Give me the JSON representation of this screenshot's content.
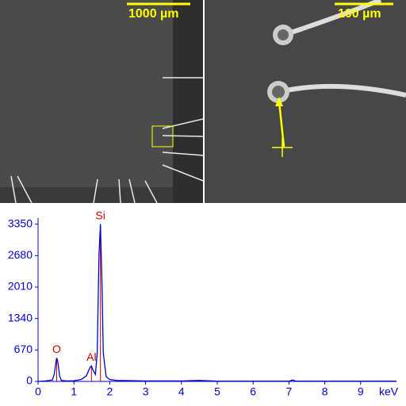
{
  "images": [
    {
      "scale_bar": "1000 µm"
    },
    {
      "scale_bar": "100 µm"
    }
  ],
  "chart_data": {
    "type": "line",
    "x_label": "keV",
    "x": [
      0,
      0.2,
      0.4,
      0.45,
      0.5,
      0.52,
      0.55,
      0.6,
      0.65,
      0.8,
      1.0,
      1.2,
      1.35,
      1.45,
      1.49,
      1.53,
      1.6,
      1.65,
      1.7,
      1.74,
      1.78,
      1.82,
      1.9,
      2.0,
      2.2,
      3,
      4,
      4.5,
      5,
      6,
      7,
      7.1,
      7.2,
      8,
      9,
      10
    ],
    "values": [
      0,
      10,
      30,
      150,
      420,
      500,
      430,
      120,
      20,
      10,
      15,
      40,
      120,
      300,
      330,
      250,
      150,
      600,
      2700,
      3350,
      2200,
      600,
      100,
      40,
      20,
      10,
      10,
      20,
      5,
      5,
      5,
      30,
      5,
      5,
      5,
      5
    ],
    "color": "#0000cc",
    "peak_labels": [
      {
        "label": "O",
        "x": 0.52
      },
      {
        "label": "Al",
        "x": 1.49
      },
      {
        "label": "Si",
        "x": 1.74
      }
    ],
    "xlim": [
      0,
      10
    ],
    "xticks": [
      0,
      1,
      2,
      3,
      4,
      5,
      6,
      7,
      8,
      9
    ],
    "ylim": [
      0,
      3480
    ],
    "yticks": [
      0,
      670,
      1340,
      2010,
      2680,
      3350
    ]
  }
}
